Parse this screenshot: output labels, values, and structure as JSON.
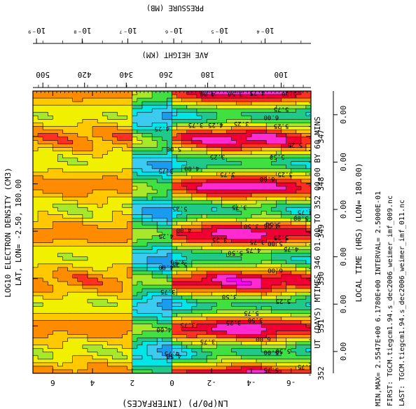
{
  "chart_data": {
    "type": "heatmap",
    "title": "LOG10 ELECTRON DENSITY (CM3)",
    "subtitle": "LAT, LON= -2.50, 180.00",
    "xlabel": "UT (DAYS) MTIMES 346 01.00 TO 352 00.00 BY 60 MINS",
    "xlabel2": "LOCAL TIME (HRS) (LON= 180.00)",
    "ylabel": "LN(P0/P) (INTERFACES)",
    "top_axis1_label": "PRESSURE (MB)",
    "top_axis2_label": "AVE HEIGHT (KM)",
    "x_range": [
      346.04,
      352.0
    ],
    "y_range": [
      -7.0,
      7.0
    ],
    "day_ticks": [
      "347",
      "348",
      "349",
      "350",
      "351",
      "352"
    ],
    "day_tick_values": [
      347,
      348,
      349,
      350,
      351,
      352
    ],
    "lt_tick_labels": [
      "0.00",
      "0.00",
      "0.00",
      "0.00",
      "0.00",
      "0.00"
    ],
    "lt_tick_values": [
      346.54,
      347.54,
      348.54,
      349.54,
      350.54,
      351.54
    ],
    "y_ticks": [
      "-6",
      "-4",
      "-2",
      "0",
      "2",
      "4",
      "6"
    ],
    "y_tick_values": [
      -6,
      -4,
      -2,
      0,
      2,
      4,
      6
    ],
    "pressure_ticks": [
      "10⁻⁹",
      "10⁻⁸",
      "10⁻⁷",
      "10⁻⁶",
      "10⁻⁵",
      "10⁻⁴"
    ],
    "pressure_tick_zp": [
      6.82,
      4.52,
      2.22,
      -0.09,
      -2.39,
      -4.69
    ],
    "height_ticks": [
      "500",
      "420",
      "340",
      "260",
      "180",
      "100"
    ],
    "height_tick_zp": [
      6.5,
      4.4,
      2.3,
      0.3,
      -1.8,
      -5.5
    ],
    "color_levels": [
      2.5,
      2.75,
      3.0,
      3.25,
      3.5,
      3.75,
      4.0,
      4.25,
      4.5,
      4.75,
      5.0,
      5.25,
      5.5,
      5.75,
      6.0
    ],
    "colors": [
      "#0047a8",
      "#006fd1",
      "#1a9bf0",
      "#3ccbf0",
      "#00e6e6",
      "#20c98a",
      "#40e040",
      "#a8e82a",
      "#f0f000",
      "#ffc800",
      "#ff8c00",
      "#ff3020",
      "#f00032",
      "#ff2ad2",
      "#ff00ff"
    ],
    "contour_labels": [
      {
        "v": "5.50",
        "x": 346.12,
        "z": -5.9
      },
      {
        "v": "5.75",
        "x": 346.45,
        "z": -5.5
      },
      {
        "v": "4.75",
        "x": 346.1,
        "z": -4.3
      },
      {
        "v": "3.50",
        "x": 346.12,
        "z": -3.2
      },
      {
        "v": "4.00",
        "x": 346.12,
        "z": -1.8
      },
      {
        "v": "6.00",
        "x": 346.62,
        "z": -5.0
      },
      {
        "v": "5.25",
        "x": 346.8,
        "z": -5.5
      },
      {
        "v": "4.25",
        "x": 346.78,
        "z": -2.2
      },
      {
        "v": "3.25",
        "x": 346.75,
        "z": -3.5
      },
      {
        "v": "3.75",
        "x": 346.78,
        "z": -1.2
      },
      {
        "v": "4.25",
        "x": 346.85,
        "z": 0.5
      },
      {
        "v": "5.00",
        "x": 347.28,
        "z": -0.1
      },
      {
        "v": "3.25",
        "x": 347.45,
        "z": -2.3
      },
      {
        "v": "5.50",
        "x": 347.45,
        "z": -5.3
      },
      {
        "v": "5.25",
        "x": 347.2,
        "z": -6.2
      },
      {
        "v": "4.00",
        "x": 347.7,
        "z": -1.0
      },
      {
        "v": "3.75",
        "x": 347.75,
        "z": 0.3
      },
      {
        "v": "3.75",
        "x": 347.82,
        "z": -2.8
      },
      {
        "v": "6.00",
        "x": 347.92,
        "z": -4.8
      },
      {
        "v": "3.25",
        "x": 347.82,
        "z": -5.7
      },
      {
        "v": "3.75",
        "x": 348.52,
        "z": -3.4
      },
      {
        "v": "5.25",
        "x": 348.55,
        "z": -0.4
      },
      {
        "v": "4.75",
        "x": 348.62,
        "z": -6.7
      },
      {
        "v": "5.00",
        "x": 348.75,
        "z": -6.5
      },
      {
        "v": "5.50",
        "x": 348.88,
        "z": -5.1
      },
      {
        "v": "4.25",
        "x": 348.9,
        "z": -5.0
      },
      {
        "v": "3.50",
        "x": 348.92,
        "z": -4.0
      },
      {
        "v": "4.00",
        "x": 349.0,
        "z": -0.6
      },
      {
        "v": "4.25",
        "x": 349.12,
        "z": 0.3
      },
      {
        "v": "3.25",
        "x": 349.2,
        "z": -2.4
      },
      {
        "v": "3.75",
        "x": 349.25,
        "z": -4.3
      },
      {
        "v": "5.00",
        "x": 349.28,
        "z": -5.2
      },
      {
        "v": "5.25",
        "x": 349.15,
        "z": -5.5
      },
      {
        "v": "4.75",
        "x": 349.4,
        "z": -6.0
      },
      {
        "v": "4.75",
        "x": 349.42,
        "z": -4.1
      },
      {
        "v": "5.50",
        "x": 349.48,
        "z": -3.2
      },
      {
        "v": "3.50",
        "x": 349.66,
        "z": -0.3
      },
      {
        "v": "5.25",
        "x": 349.72,
        "z": -0.4
      },
      {
        "v": "6.00",
        "x": 349.85,
        "z": -5.2
      },
      {
        "v": "4.00",
        "x": 349.78,
        "z": 0.3
      },
      {
        "v": "3.75",
        "x": 350.3,
        "z": 0.2
      },
      {
        "v": "3.50",
        "x": 350.4,
        "z": -2.9
      },
      {
        "v": "5.25",
        "x": 350.5,
        "z": -5.6
      },
      {
        "v": "5.75",
        "x": 350.75,
        "z": -4.0
      },
      {
        "v": "3.50",
        "x": 350.9,
        "z": -4.2
      },
      {
        "v": "3.25",
        "x": 350.95,
        "z": -3.1
      },
      {
        "v": "3.75",
        "x": 351.0,
        "z": -0.8
      },
      {
        "v": "4.00",
        "x": 351.1,
        "z": 0.4
      },
      {
        "v": "6.00",
        "x": 351.3,
        "z": -4.6
      },
      {
        "v": "5.50",
        "x": 351.55,
        "z": -5.6
      },
      {
        "v": "5.00",
        "x": 351.58,
        "z": -5.0
      },
      {
        "v": "3.75",
        "x": 351.35,
        "z": -1.8
      },
      {
        "v": "4.75",
        "x": 351.6,
        "z": 0.0
      },
      {
        "v": "4.50",
        "x": 351.65,
        "z": -0.1
      },
      {
        "v": "4.75",
        "x": 351.88,
        "z": -6.7
      },
      {
        "v": "5.75",
        "x": 351.95,
        "z": -5.0
      }
    ],
    "stats": {
      "minmax": "MIN,MAX=  2.5547E+00  6.1780E+00 INTERVAL=  2.5000E-01",
      "first": "FIRST: TGCM.tiegcm1.94.s_dec2006_weimer_imf_009.nc",
      "last": "LAST:  TGCM.tiegcm1.94.s_dec2006_weimer_imf_011.nc"
    }
  }
}
